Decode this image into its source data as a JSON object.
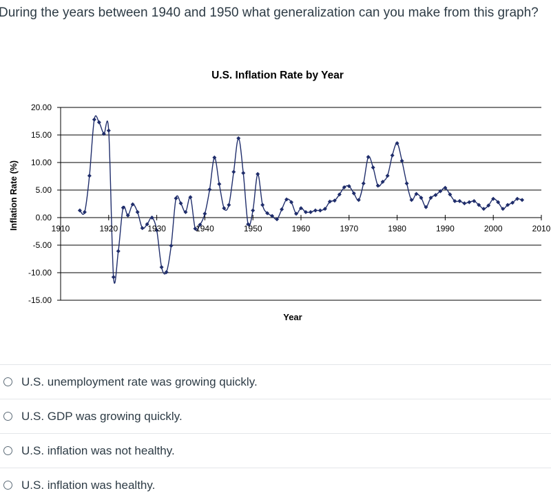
{
  "question": {
    "text": "During the years between 1940 and 1950 what generalization can you make from this graph?"
  },
  "answers": [
    {
      "label": "U.S. unemployment rate was growing quickly."
    },
    {
      "label": "U.S. GDP was growing quickly."
    },
    {
      "label": "U.S. inflation was not healthy."
    },
    {
      "label": "U.S. inflation was healthy."
    }
  ],
  "chart_data": {
    "type": "line",
    "title": "U.S. Inflation Rate by Year",
    "xlabel": "Year",
    "ylabel": "Inflation Rate (%)",
    "xlim": [
      1910,
      2010
    ],
    "ylim": [
      -15,
      20
    ],
    "x_ticks": [
      "1910",
      "1920",
      "1930",
      "1940",
      "1950",
      "1960",
      "1970",
      "1980",
      "1990",
      "2000",
      "2010"
    ],
    "y_ticks": [
      "20.00",
      "15.00",
      "10.00",
      "5.00",
      "0.00",
      "-5.00",
      "-10.00",
      "-15.00"
    ],
    "grid": true,
    "legend": "none",
    "series_color": "#1f2d6b",
    "series": [
      {
        "x": [
          1914,
          1915,
          1916,
          1917,
          1918,
          1919,
          1920,
          1921,
          1922,
          1923,
          1924,
          1925,
          1926,
          1927,
          1928,
          1929,
          1930,
          1931,
          1932,
          1933,
          1934,
          1935,
          1936,
          1937,
          1938,
          1939,
          1940,
          1941,
          1942,
          1943,
          1944,
          1945,
          1946,
          1947,
          1948,
          1949,
          1950,
          1951,
          1952,
          1953,
          1954,
          1955,
          1956,
          1957,
          1958,
          1959,
          1960,
          1961,
          1962,
          1963,
          1964,
          1965,
          1966,
          1967,
          1968,
          1969,
          1970,
          1971,
          1972,
          1973,
          1974,
          1975,
          1976,
          1977,
          1978,
          1979,
          1980,
          1981,
          1982,
          1983,
          1984,
          1985,
          1986,
          1987,
          1988,
          1989,
          1990,
          1991,
          1992,
          1993,
          1994,
          1995,
          1996,
          1997,
          1998,
          1999,
          2000,
          2001,
          2002,
          2003,
          2004,
          2005,
          2006
        ],
        "y": [
          1.3,
          1.0,
          7.6,
          17.8,
          17.3,
          15.2,
          15.8,
          -10.8,
          -6.1,
          1.8,
          0.4,
          2.4,
          1.0,
          -1.9,
          -1.2,
          0.0,
          -2.3,
          -9.0,
          -9.9,
          -5.1,
          3.5,
          2.6,
          1.0,
          3.7,
          -2.0,
          -1.3,
          0.7,
          5.1,
          10.9,
          6.1,
          1.7,
          2.3,
          8.3,
          14.4,
          8.1,
          -1.2,
          1.3,
          7.9,
          2.3,
          0.8,
          0.3,
          -0.3,
          1.5,
          3.3,
          2.8,
          0.7,
          1.7,
          1.0,
          1.0,
          1.3,
          1.3,
          1.6,
          2.9,
          3.1,
          4.2,
          5.5,
          5.7,
          4.4,
          3.2,
          6.2,
          11.0,
          9.1,
          5.8,
          6.5,
          7.6,
          11.3,
          13.5,
          10.3,
          6.2,
          3.2,
          4.3,
          3.6,
          1.9,
          3.6,
          4.1,
          4.8,
          5.4,
          4.2,
          3.0,
          3.0,
          2.6,
          2.8,
          3.0,
          2.3,
          1.6,
          2.2,
          3.4,
          2.8,
          1.6,
          2.3,
          2.7,
          3.4,
          3.2
        ]
      }
    ]
  }
}
